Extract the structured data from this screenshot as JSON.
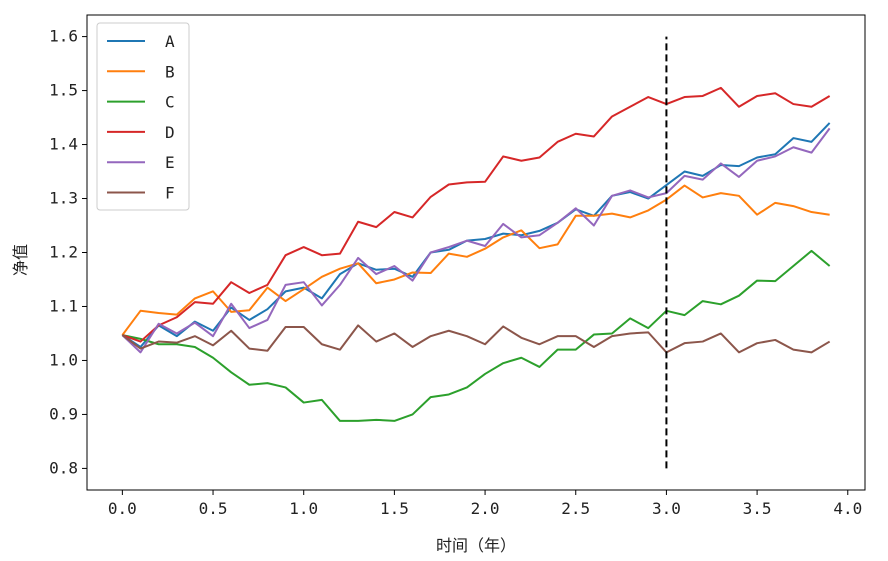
{
  "chart_data": {
    "type": "line",
    "title": "",
    "xlabel": "时间（年）",
    "ylabel": "净值",
    "xlim": [
      -0.195,
      4.095
    ],
    "ylim": [
      0.76,
      1.64
    ],
    "xticks": [
      "0.0",
      "0.5",
      "1.0",
      "1.5",
      "2.0",
      "2.5",
      "3.0",
      "3.5",
      "4.0"
    ],
    "yticks": [
      "0.8",
      "0.9",
      "1.0",
      "1.1",
      "1.2",
      "1.3",
      "1.4",
      "1.5",
      "1.6"
    ],
    "grid": false,
    "legend": "top-left",
    "vline": {
      "x": 3.0,
      "y_range": [
        0.8,
        1.6
      ],
      "style": "dashed",
      "color": "#000000"
    },
    "x": [
      0.0,
      0.1,
      0.2,
      0.3,
      0.4,
      0.5,
      0.6,
      0.7,
      0.8,
      0.9,
      1.0,
      1.1,
      1.2,
      1.3,
      1.4,
      1.5,
      1.6,
      1.7,
      1.8,
      1.9,
      2.0,
      2.1,
      2.2,
      2.3,
      2.4,
      2.5,
      2.6,
      2.7,
      2.8,
      2.9,
      3.0,
      3.1,
      3.2,
      3.3,
      3.4,
      3.5,
      3.6,
      3.7,
      3.8,
      3.9
    ],
    "series": [
      {
        "name": "A",
        "color": "#1f77b4",
        "values": [
          1.047,
          1.025,
          1.065,
          1.045,
          1.072,
          1.055,
          1.098,
          1.075,
          1.095,
          1.128,
          1.135,
          1.115,
          1.16,
          1.18,
          1.168,
          1.17,
          1.155,
          1.2,
          1.205,
          1.222,
          1.225,
          1.235,
          1.232,
          1.24,
          1.255,
          1.28,
          1.268,
          1.305,
          1.312,
          1.3,
          1.325,
          1.35,
          1.342,
          1.362,
          1.36,
          1.376,
          1.382,
          1.412,
          1.405,
          1.44
        ]
      },
      {
        "name": "B",
        "color": "#ff7f0e",
        "values": [
          1.047,
          1.092,
          1.088,
          1.085,
          1.115,
          1.128,
          1.09,
          1.093,
          1.135,
          1.11,
          1.132,
          1.155,
          1.17,
          1.18,
          1.143,
          1.15,
          1.163,
          1.162,
          1.198,
          1.192,
          1.207,
          1.228,
          1.241,
          1.208,
          1.215,
          1.268,
          1.268,
          1.272,
          1.265,
          1.278,
          1.298,
          1.324,
          1.302,
          1.31,
          1.305,
          1.27,
          1.292,
          1.286,
          1.275,
          1.27
        ]
      },
      {
        "name": "C",
        "color": "#2ca02c",
        "values": [
          1.047,
          1.04,
          1.03,
          1.03,
          1.025,
          1.005,
          0.978,
          0.955,
          0.958,
          0.95,
          0.922,
          0.927,
          0.888,
          0.888,
          0.89,
          0.888,
          0.9,
          0.932,
          0.937,
          0.95,
          0.975,
          0.995,
          1.005,
          0.988,
          1.02,
          1.02,
          1.048,
          1.05,
          1.078,
          1.06,
          1.092,
          1.084,
          1.11,
          1.104,
          1.12,
          1.148,
          1.147,
          1.175,
          1.203,
          1.175
        ]
      },
      {
        "name": "D",
        "color": "#d62728",
        "values": [
          1.047,
          1.035,
          1.065,
          1.08,
          1.108,
          1.105,
          1.145,
          1.125,
          1.14,
          1.195,
          1.21,
          1.195,
          1.198,
          1.257,
          1.247,
          1.275,
          1.265,
          1.303,
          1.326,
          1.33,
          1.331,
          1.378,
          1.37,
          1.376,
          1.405,
          1.42,
          1.415,
          1.452,
          1.47,
          1.488,
          1.475,
          1.488,
          1.49,
          1.505,
          1.47,
          1.49,
          1.495,
          1.475,
          1.47,
          1.49
        ]
      },
      {
        "name": "E",
        "color": "#9467bd",
        "values": [
          1.047,
          1.015,
          1.068,
          1.05,
          1.07,
          1.045,
          1.105,
          1.06,
          1.075,
          1.14,
          1.145,
          1.102,
          1.14,
          1.19,
          1.16,
          1.175,
          1.148,
          1.2,
          1.21,
          1.222,
          1.212,
          1.253,
          1.228,
          1.232,
          1.255,
          1.282,
          1.25,
          1.305,
          1.315,
          1.302,
          1.31,
          1.342,
          1.335,
          1.365,
          1.34,
          1.37,
          1.378,
          1.395,
          1.385,
          1.43
        ]
      },
      {
        "name": "F",
        "color": "#8c564b",
        "values": [
          1.047,
          1.022,
          1.035,
          1.033,
          1.045,
          1.028,
          1.055,
          1.022,
          1.018,
          1.062,
          1.062,
          1.03,
          1.02,
          1.065,
          1.035,
          1.05,
          1.025,
          1.045,
          1.055,
          1.045,
          1.03,
          1.063,
          1.042,
          1.03,
          1.045,
          1.045,
          1.025,
          1.045,
          1.05,
          1.052,
          1.015,
          1.032,
          1.035,
          1.05,
          1.015,
          1.032,
          1.038,
          1.02,
          1.015,
          1.035
        ]
      }
    ]
  }
}
